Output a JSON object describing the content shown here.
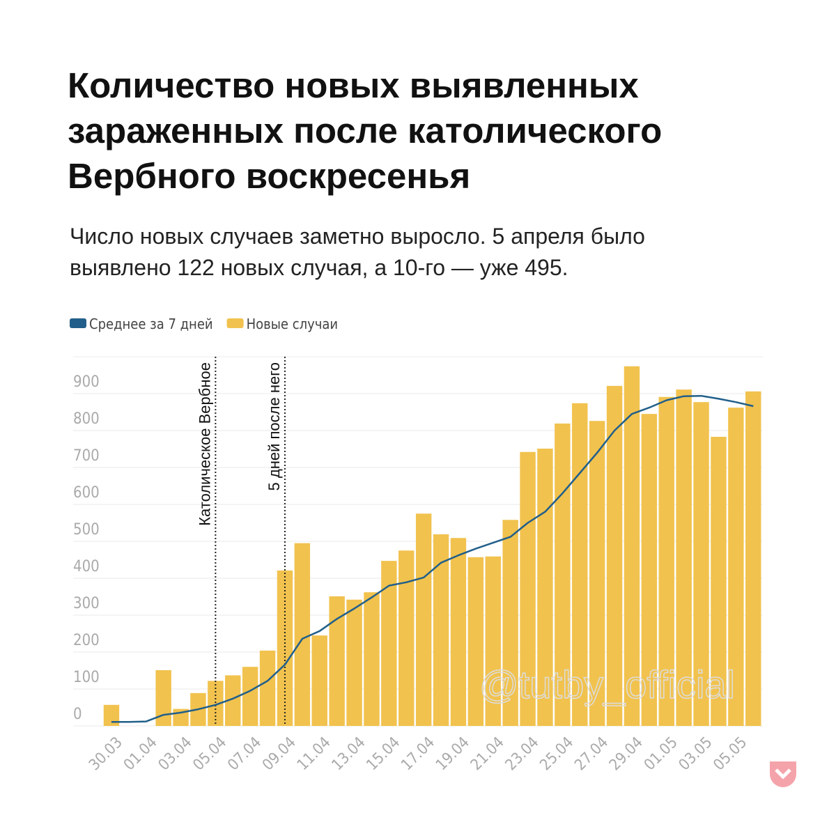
{
  "chart_data": {
    "type": "bar",
    "title": [
      "Количество новых выявленных",
      "зараженных после католического",
      "Вербного воскресенья"
    ],
    "subtitle": [
      "Число новых случаев заметно выросло. 5 апреля было",
      "выявлено 122 новых случая, а 10-го — уже 495."
    ],
    "categories": [
      "30.03",
      null,
      "01.04",
      null,
      "03.04",
      null,
      "05.04",
      null,
      "07.04",
      null,
      "09.04",
      null,
      "11.04",
      null,
      "13.04",
      null,
      "15.04",
      null,
      "17.04",
      null,
      "19.04",
      null,
      "21.04",
      null,
      "23.04",
      null,
      "25.04",
      null,
      "27.04",
      null,
      "29.04",
      null,
      "01.05",
      null,
      "03.05",
      null,
      "05.05",
      null
    ],
    "series": [
      {
        "name": "Среднее за 7 дней",
        "type": "line",
        "color": "#215f8a",
        "values": [
          11,
          11,
          12,
          30,
          36,
          45,
          57,
          74,
          95,
          122,
          166,
          236,
          257,
          290,
          318,
          348,
          380,
          389,
          402,
          442,
          462,
          480,
          496,
          512,
          550,
          580,
          630,
          685,
          740,
          800,
          845,
          862,
          882,
          893,
          894,
          886,
          877,
          866
        ]
      },
      {
        "name": "Новые случаи",
        "type": "bar",
        "color": "#f1c24e",
        "values": [
          57,
          0,
          0,
          151,
          46,
          89,
          122,
          137,
          160,
          204,
          421,
          495,
          245,
          351,
          342,
          362,
          447,
          475,
          575,
          519,
          509,
          457,
          459,
          558,
          742,
          751,
          819,
          874,
          826,
          921,
          974,
          845,
          891,
          911,
          877,
          783,
          862,
          906
        ]
      }
    ],
    "annotations": [
      {
        "text": "Католическое Вербное",
        "x": "05.04"
      },
      {
        "text": "5 дней после него",
        "x": "09.04"
      }
    ],
    "watermark": "@tutby_official",
    "ylim": [
      0,
      1000
    ],
    "yticks": [
      0,
      100,
      200,
      300,
      400,
      500,
      600,
      700,
      800,
      900
    ],
    "grid": true
  }
}
